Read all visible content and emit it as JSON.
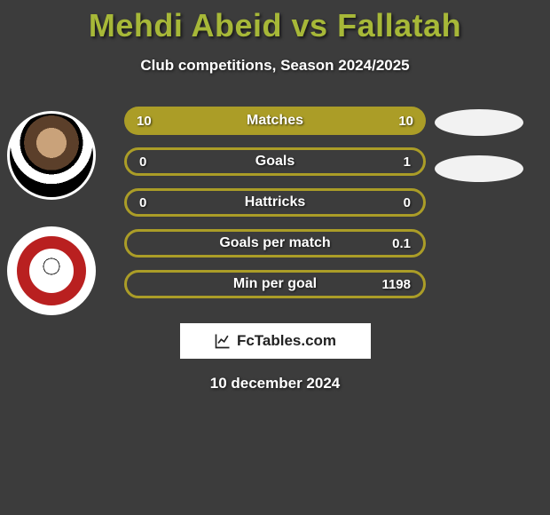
{
  "title": "Mehdi Abeid vs Fallatah",
  "title_color": "#a7b838",
  "subtitle": "Club competitions, Season 2024/2025",
  "subtitle_color": "#ffffff",
  "background_color": "#3c3c3c",
  "bar_full_color": "#ab9d27",
  "bar_outline_color": "#ab9d27",
  "text_color": "#ffffff",
  "oval_color": "#f2f2f2",
  "rows": [
    {
      "label": "Matches",
      "left": "10",
      "right": "10",
      "filled": true,
      "show_oval": true
    },
    {
      "label": "Goals",
      "left": "0",
      "right": "1",
      "filled": false,
      "show_oval": true
    },
    {
      "label": "Hattricks",
      "left": "0",
      "right": "0",
      "filled": false,
      "show_oval": false
    },
    {
      "label": "Goals per match",
      "left": "",
      "right": "0.1",
      "filled": false,
      "show_oval": false
    },
    {
      "label": "Min per goal",
      "left": "",
      "right": "1198",
      "filled": false,
      "show_oval": false
    }
  ],
  "brand": "FcTables.com",
  "date": "10 december 2024",
  "avatars": {
    "player1": "avatar-photo",
    "player2": "club-badge"
  }
}
